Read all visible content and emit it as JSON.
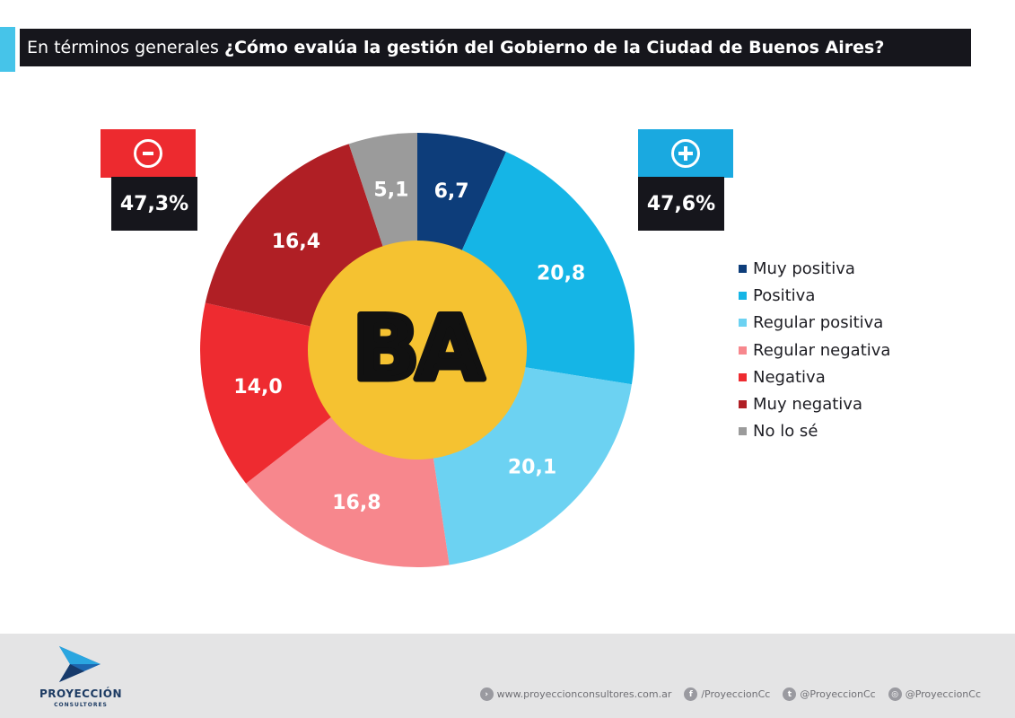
{
  "header": {
    "title_prefix": "En términos generales ",
    "title_question": "¿Cómo evalúa la gestión del Gobierno de la Ciudad de Buenos Aires?"
  },
  "summary": {
    "negative": {
      "symbol": "minus-icon",
      "value": "47,3%",
      "color": "#ed2a2f"
    },
    "positive": {
      "symbol": "plus-icon",
      "value": "47,6%",
      "color": "#1aa9e0"
    }
  },
  "center_logo": {
    "text": "BA",
    "background": "#f5c231",
    "text_color": "#111111"
  },
  "chart_data": {
    "type": "pie",
    "donut": true,
    "categories": [
      "Muy positiva",
      "Positiva",
      "Regular positiva",
      "Regular negativa",
      "Negativa",
      "Muy negativa",
      "No lo sé"
    ],
    "values": [
      6.7,
      20.8,
      20.1,
      16.8,
      14.0,
      16.4,
      5.1
    ],
    "labels": [
      "6,7",
      "20,8",
      "20,1",
      "16,8",
      "14,0",
      "16,4",
      "5,1"
    ],
    "colors": [
      "#0d3d7a",
      "#15b5e6",
      "#6cd2f2",
      "#f7878d",
      "#ee2b30",
      "#b01f25",
      "#9b9b9b"
    ],
    "legend_position": "right",
    "start": "top, clockwise"
  },
  "footer": {
    "brand": "PROYECCIÓN",
    "brand_sub": "CONSULTORES",
    "contacts": [
      {
        "icon": "arrow-circle-icon",
        "glyph": "›",
        "text": "www.proyeccionconsultores.com.ar"
      },
      {
        "icon": "facebook-icon",
        "glyph": "f",
        "text": "/ProyeccionCc"
      },
      {
        "icon": "twitter-icon",
        "glyph": "t",
        "text": "@ProyeccionCc"
      },
      {
        "icon": "instagram-icon",
        "glyph": "◎",
        "text": "@ProyeccionCc"
      }
    ]
  }
}
